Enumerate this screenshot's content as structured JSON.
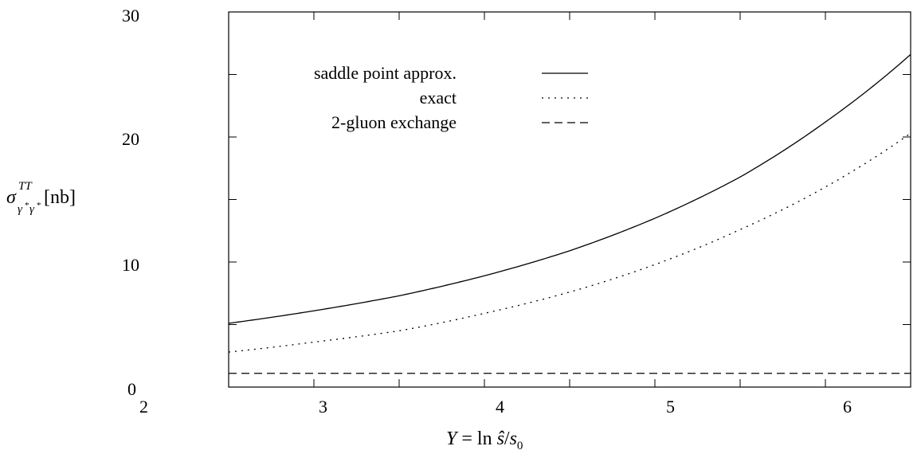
{
  "chart_data": {
    "type": "line",
    "xlabel": "Y = ln ŝ/s₀",
    "ylabel": "σ^TT_γ*γ* [nb]",
    "xlim": [
      2.5,
      6.5
    ],
    "ylim": [
      0,
      30
    ],
    "xticks": [
      "2",
      "3",
      "4",
      "5",
      "6"
    ],
    "yticks": [
      "0",
      "10",
      "20",
      "30"
    ],
    "grid": false,
    "legend_position": "top-left",
    "series": [
      {
        "name": "saddle point approx.",
        "style": "solid",
        "x": [
          2.5,
          3.0,
          3.5,
          4.0,
          4.5,
          5.0,
          5.5,
          6.0,
          6.5
        ],
        "y": [
          5.1,
          6.1,
          7.3,
          8.9,
          10.9,
          13.5,
          16.8,
          21.2,
          26.6
        ]
      },
      {
        "name": "exact",
        "style": "dotted",
        "x": [
          2.5,
          3.0,
          3.5,
          4.0,
          4.5,
          5.0,
          5.5,
          6.0,
          6.5
        ],
        "y": [
          2.8,
          3.6,
          4.5,
          5.9,
          7.6,
          9.8,
          12.6,
          16.0,
          20.3
        ]
      },
      {
        "name": "2-gluon exchange",
        "style": "dashed",
        "x": [
          2.5,
          6.5
        ],
        "y": [
          1.1,
          1.1
        ]
      }
    ]
  }
}
